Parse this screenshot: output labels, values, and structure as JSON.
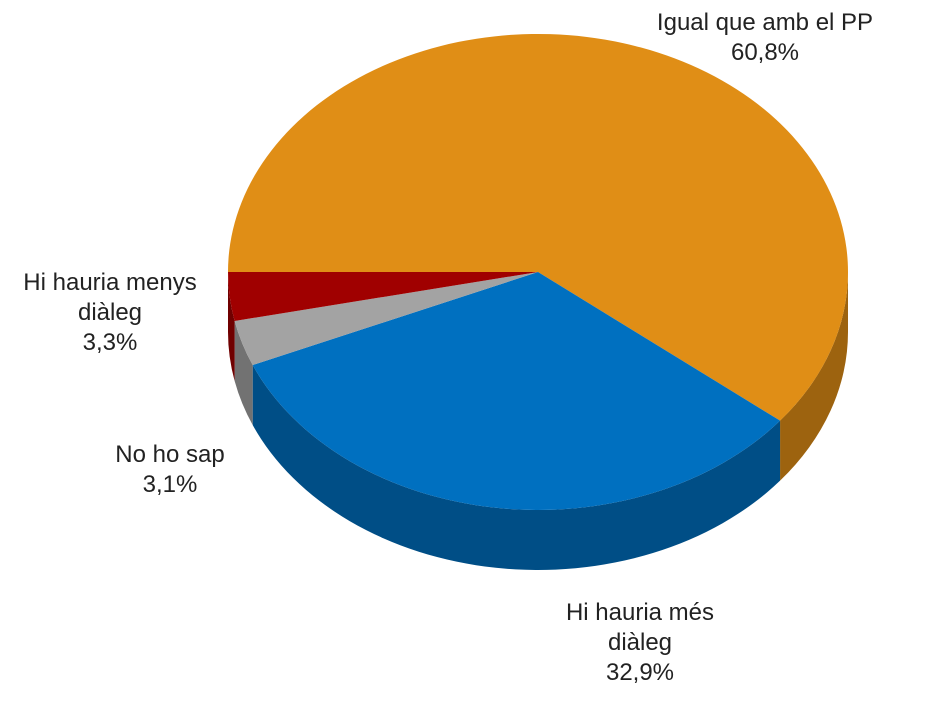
{
  "chart_data": {
    "type": "pie",
    "categories": [
      "Igual que amb el PP",
      "Hi hauria més diàleg",
      "No ho sap",
      "Hi hauria menys diàleg"
    ],
    "values": [
      60.8,
      32.9,
      3.1,
      3.3
    ],
    "value_labels": [
      "60,8%",
      "32,9%",
      "3,1%",
      "3,3%"
    ],
    "colors": [
      "#e08e16",
      "#0070c0",
      "#a3a3a3",
      "#a00000"
    ]
  }
}
